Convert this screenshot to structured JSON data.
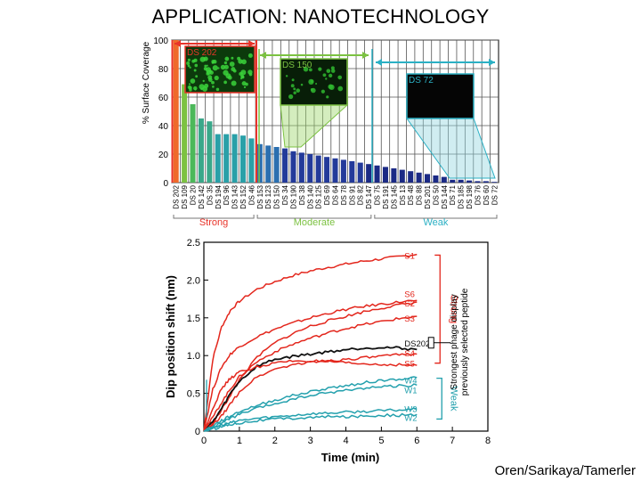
{
  "slide_title": "APPLICATION: NANOTECHNOLOGY",
  "credit": "Oren/Sarikaya/Tamerler",
  "chart_data": [
    {
      "type": "bar",
      "title": "",
      "ylabel": "% Surface Coverage",
      "xlabel": "",
      "ylim": [
        0,
        100
      ],
      "yticks": [
        0,
        20,
        40,
        60,
        80,
        100
      ],
      "categories": [
        "DS 202",
        "DS 109",
        "DS 20",
        "DS 142",
        "DS 35",
        "DS 194",
        "DS 96",
        "DS 143",
        "DS 152",
        "DS 46",
        "DS 153",
        "DS 123",
        "DS 150",
        "DS 34",
        "DS 190",
        "DS 38",
        "DS 140",
        "DS 125",
        "DS 69",
        "DS 64",
        "DS 78",
        "DS 91",
        "DS 82",
        "DS 147",
        "DS 75",
        "DS 191",
        "DS 145",
        "DS 13",
        "DS 48",
        "DS 88",
        "DS 201",
        "DS 50",
        "DS 144",
        "DS 71",
        "DS 185",
        "DS 198",
        "DS 76",
        "DS 60",
        "DS 72"
      ],
      "values": [
        100,
        69,
        55,
        45,
        43,
        34,
        34,
        34,
        33,
        31,
        27,
        26,
        25,
        24,
        22,
        21,
        20,
        19,
        18,
        17,
        16,
        15,
        14,
        13,
        12,
        11,
        10,
        9,
        8,
        7,
        6,
        5,
        4,
        2,
        2,
        1.5,
        1,
        1,
        0.5
      ],
      "groups": [
        {
          "label": "Strong",
          "color": "#e8342a"
        },
        {
          "label": "Moderate",
          "color": "#7cc242"
        },
        {
          "label": "Weak",
          "color": "#2bb0c4"
        }
      ],
      "inset_labels": [
        "DS 202",
        "DS 150",
        "DS 72"
      ]
    },
    {
      "type": "line",
      "title": "",
      "xlabel": "Time (min)",
      "ylabel": "Dip position shift (nm)",
      "xlim": [
        0,
        8
      ],
      "ylim": [
        0,
        2.5
      ],
      "xticks": [
        0,
        1,
        2,
        3,
        4,
        5,
        6,
        7,
        8
      ],
      "yticks": [
        0,
        0.5,
        1.0,
        1.5,
        2.0,
        2.5
      ],
      "ytick_labels": [
        "0",
        "0.5",
        "1.0",
        "1.5",
        "2.0",
        "2.5"
      ],
      "x": [
        0,
        0.25,
        0.5,
        0.75,
        1,
        1.5,
        2,
        2.5,
        3,
        3.5,
        4,
        4.5,
        5,
        5.5,
        6
      ],
      "series": [
        {
          "name": "S1",
          "group": "Strong",
          "color": "#e3261c",
          "values": [
            0,
            0.95,
            1.38,
            1.6,
            1.72,
            1.88,
            1.98,
            2.06,
            2.12,
            2.17,
            2.21,
            2.25,
            2.28,
            2.31,
            2.34
          ]
        },
        {
          "name": "S6",
          "group": "Strong",
          "color": "#e3261c",
          "values": [
            0,
            0.55,
            0.85,
            1.02,
            1.12,
            1.25,
            1.35,
            1.43,
            1.5,
            1.56,
            1.61,
            1.65,
            1.68,
            1.71,
            1.73
          ]
        },
        {
          "name": "S2",
          "group": "Strong",
          "color": "#e3261c",
          "values": [
            0,
            0.1,
            0.28,
            0.48,
            0.68,
            0.98,
            1.17,
            1.29,
            1.39,
            1.46,
            1.52,
            1.58,
            1.63,
            1.67,
            1.71
          ]
        },
        {
          "name": "S3",
          "group": "Strong",
          "color": "#e3261c",
          "values": [
            0,
            0.18,
            0.38,
            0.56,
            0.72,
            0.92,
            1.05,
            1.15,
            1.23,
            1.3,
            1.36,
            1.41,
            1.45,
            1.49,
            1.52
          ]
        },
        {
          "name": "DS202",
          "group": "Strongest phage display previously selected peptide",
          "color": "#111111",
          "values": [
            0,
            0.12,
            0.3,
            0.5,
            0.66,
            0.86,
            0.95,
            0.99,
            1.02,
            1.05,
            1.08,
            1.1,
            1.11,
            1.1,
            1.08
          ]
        },
        {
          "name": "S4",
          "group": "Strong",
          "color": "#e3261c",
          "values": [
            0,
            0.08,
            0.2,
            0.36,
            0.52,
            0.72,
            0.82,
            0.88,
            0.91,
            0.93,
            0.95,
            0.97,
            0.99,
            1.01,
            1.02
          ]
        },
        {
          "name": "S5",
          "group": "Strong",
          "color": "#e3261c",
          "values": [
            0,
            0.3,
            0.56,
            0.7,
            0.78,
            0.85,
            0.9,
            0.93,
            0.93,
            0.92,
            0.9,
            0.89,
            0.88,
            0.88,
            0.87
          ]
        },
        {
          "name": "W4",
          "group": "Weak",
          "color": "#23a0ad",
          "values": [
            0,
            0.07,
            0.14,
            0.2,
            0.26,
            0.34,
            0.41,
            0.47,
            0.52,
            0.57,
            0.6,
            0.64,
            0.67,
            0.69,
            0.71
          ]
        },
        {
          "name": "W1",
          "group": "Weak",
          "color": "#23a0ad",
          "values": [
            0,
            0.05,
            0.11,
            0.17,
            0.22,
            0.3,
            0.36,
            0.42,
            0.47,
            0.51,
            0.54,
            0.57,
            0.59,
            0.6,
            0.61
          ]
        },
        {
          "name": "W3",
          "group": "Weak",
          "color": "#23a0ad",
          "values": [
            0,
            0.04,
            0.08,
            0.11,
            0.14,
            0.17,
            0.19,
            0.21,
            0.23,
            0.24,
            0.25,
            0.26,
            0.27,
            0.28,
            0.29
          ]
        },
        {
          "name": "W2",
          "group": "Weak",
          "color": "#23a0ad",
          "values": [
            0,
            0.03,
            0.06,
            0.09,
            0.11,
            0.14,
            0.16,
            0.17,
            0.18,
            0.19,
            0.19,
            0.2,
            0.21,
            0.21,
            0.22
          ]
        }
      ],
      "side_labels": {
        "strong": "Strong",
        "weak": "Weak",
        "ds202_note": "Strongest phage display previously selected peptide"
      }
    }
  ]
}
